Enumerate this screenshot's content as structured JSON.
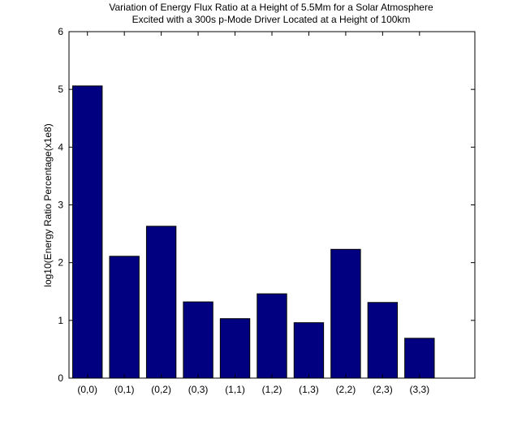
{
  "chart_data": {
    "type": "bar",
    "title": [
      "Variation of Energy Flux Ratio at a Height of 5.5Mm for a Solar Atmosphere",
      "Excited with a 300s p-Mode Driver Located at a Height of 100km"
    ],
    "xlabel": "",
    "ylabel": "log10(Energy Ratio Percentage(x1e8)",
    "categories": [
      "(0,0)",
      "(0,1)",
      "(0,2)",
      "(0,3)",
      "(1,1)",
      "(1,2)",
      "(1,3)",
      "(2,2)",
      "(2,3)",
      "(3,3)"
    ],
    "values": [
      5.06,
      2.11,
      2.63,
      1.32,
      1.03,
      1.46,
      0.96,
      2.23,
      1.31,
      0.69
    ],
    "xlim": [
      0.5,
      11.5
    ],
    "ylim": [
      0,
      6
    ],
    "yticks": [
      0,
      1,
      2,
      3,
      4,
      5,
      6
    ],
    "grid": false,
    "legend": "none",
    "colors": {
      "bar": "#000080",
      "bar_edge": "#000000",
      "axes": "#000000",
      "background": "#ffffff"
    }
  }
}
